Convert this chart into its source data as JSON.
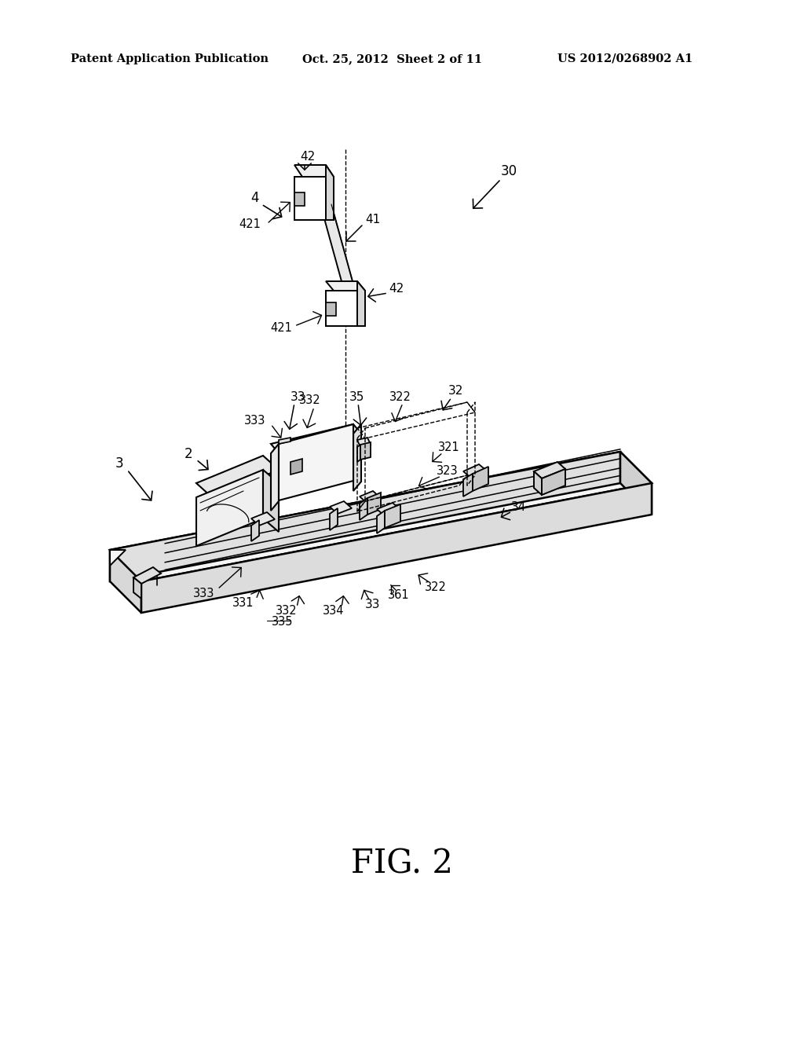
{
  "bg_color": "#ffffff",
  "header_left": "Patent Application Publication",
  "header_mid": "Oct. 25, 2012  Sheet 2 of 11",
  "header_right": "US 2012/0268902 A1",
  "figure_label": "FIG. 2",
  "header_fontsize": 10.5,
  "figure_label_fontsize": 30,
  "text_color": "#000000",
  "line_color": "#000000"
}
